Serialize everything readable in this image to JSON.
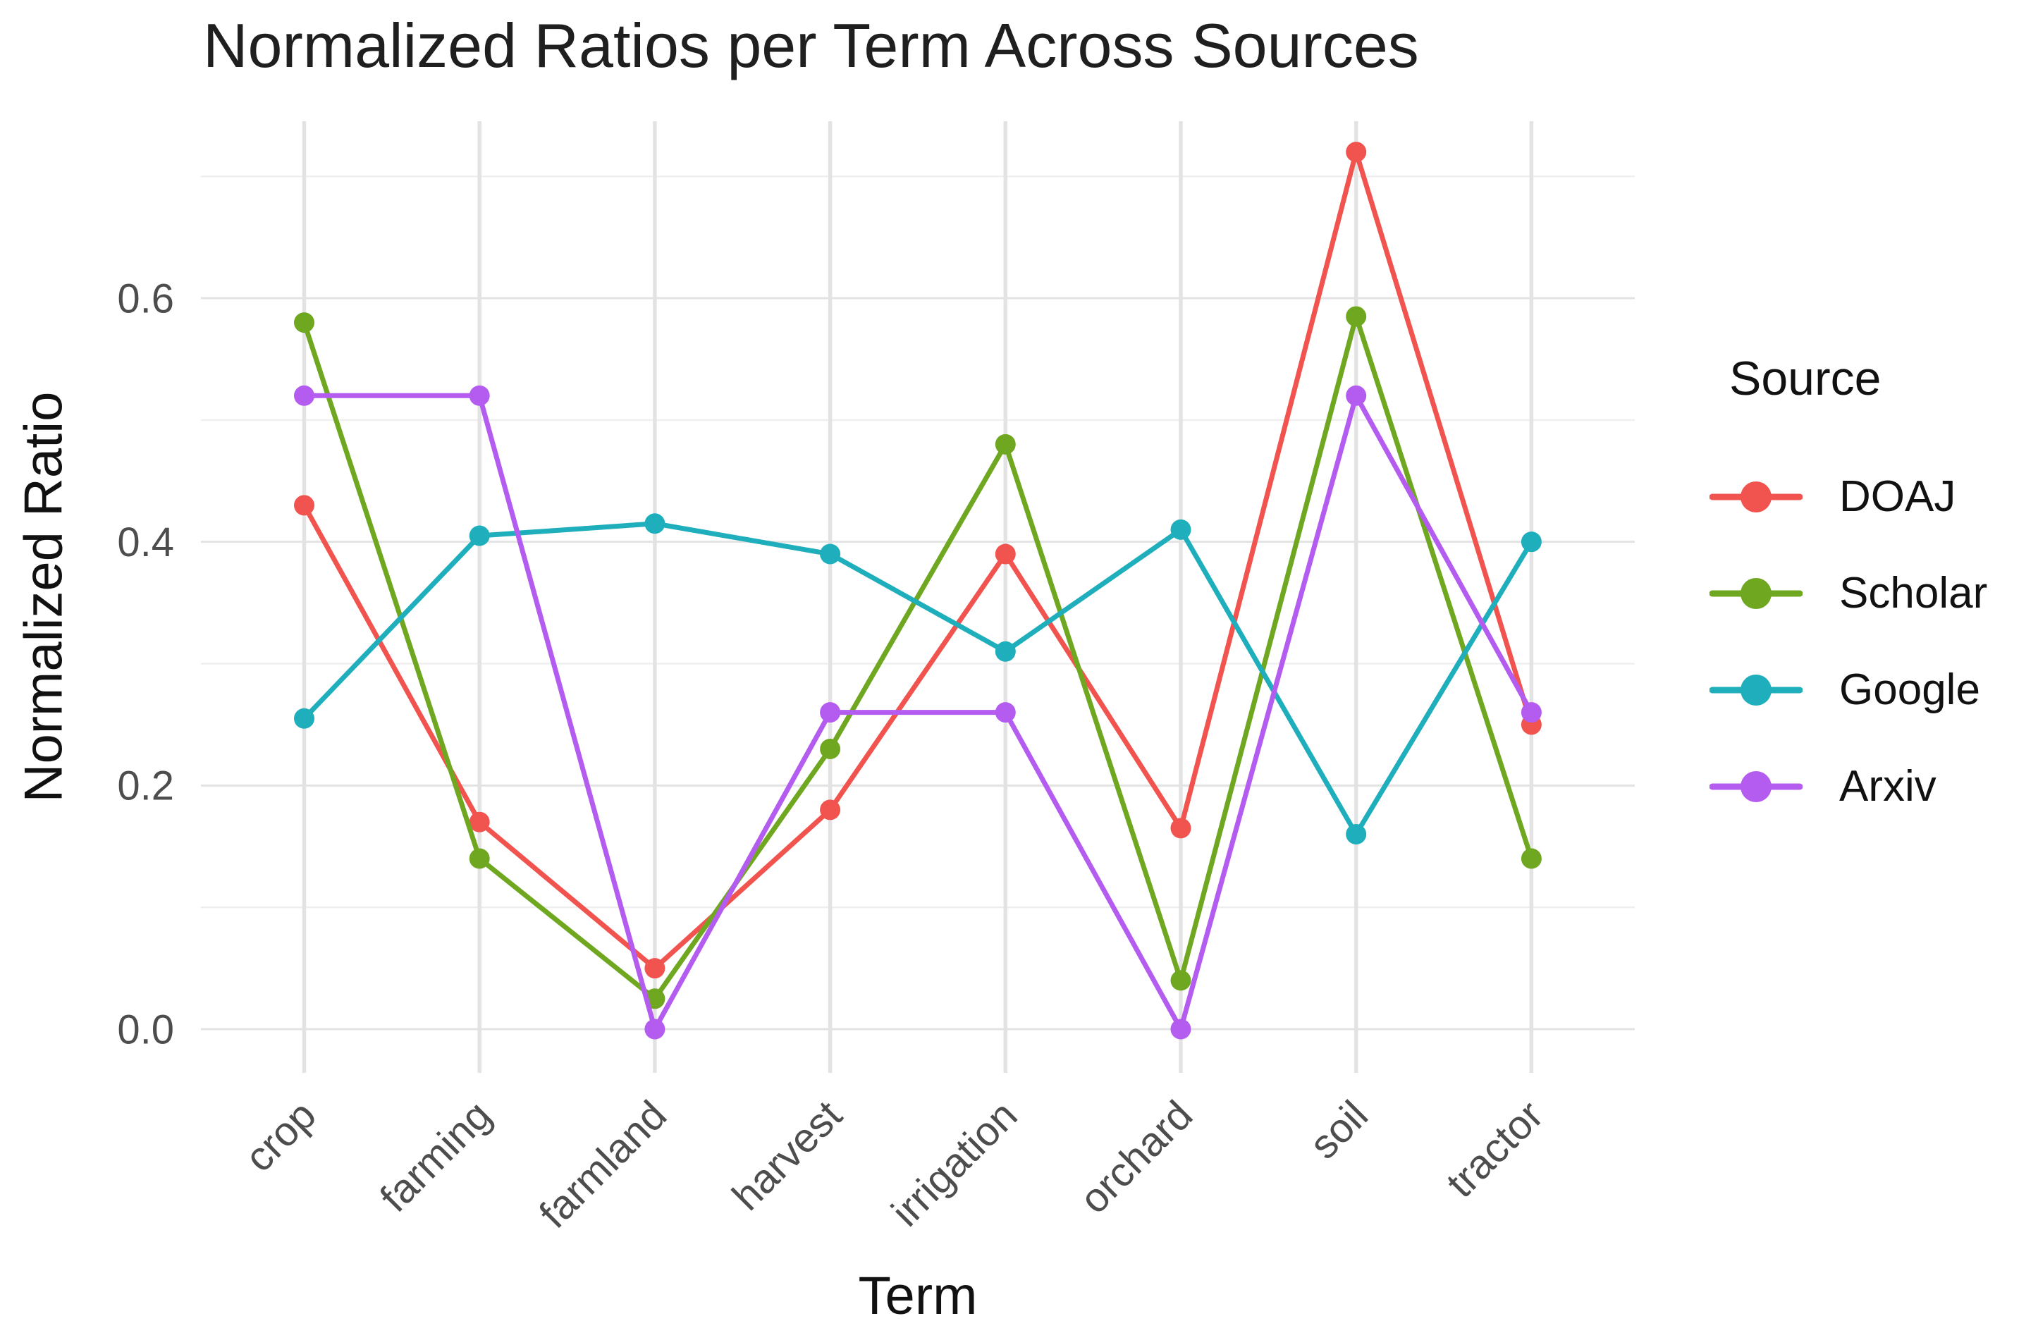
{
  "chart_data": {
    "type": "line",
    "title": "Normalized Ratios per Term Across Sources",
    "xlabel": "Term",
    "ylabel": "Normalized Ratio",
    "legend_title": "Source",
    "legend_position": "right",
    "grid": true,
    "categories": [
      "crop",
      "farming",
      "farmland",
      "harvest",
      "irrigation",
      "orchard",
      "soil",
      "tractor"
    ],
    "series": [
      {
        "name": "DOAJ",
        "color": "#F1544F",
        "values": [
          0.43,
          0.17,
          0.05,
          0.18,
          0.39,
          0.165,
          0.72,
          0.25
        ]
      },
      {
        "name": "Scholar",
        "color": "#6FA820",
        "values": [
          0.58,
          0.14,
          0.025,
          0.23,
          0.48,
          0.04,
          0.585,
          0.14
        ]
      },
      {
        "name": "Google",
        "color": "#1FAEBC",
        "values": [
          0.255,
          0.405,
          0.415,
          0.39,
          0.31,
          0.41,
          0.16,
          0.4
        ]
      },
      {
        "name": "Arxiv",
        "color": "#B45CF0",
        "values": [
          0.52,
          0.52,
          0.0,
          0.26,
          0.26,
          0.0,
          0.52,
          0.26
        ]
      }
    ],
    "ylim": [
      -0.036,
      0.752
    ],
    "yticks": [
      0.0,
      0.2,
      0.4,
      0.6
    ],
    "ytick_labels": [
      "0.0",
      "0.2",
      "0.4",
      "0.6"
    ],
    "yticks_minor": [
      0.1,
      0.3,
      0.5,
      0.7
    ]
  },
  "colors": {
    "tick_label": "#4D4D4D",
    "grid_major": "#E3E3E3",
    "grid_minor": "#EFEFEF"
  }
}
